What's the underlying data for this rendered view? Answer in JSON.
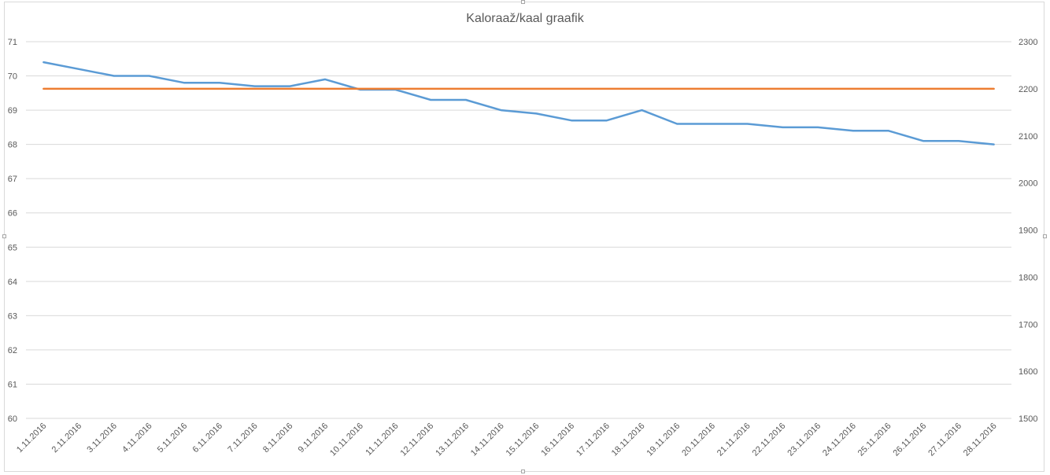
{
  "chart_data": {
    "type": "line",
    "title": "Kaloraaž/kaal graafik",
    "x": [
      "1.11.2016",
      "2.11.2016",
      "3.11.2016",
      "4.11.2016",
      "5.11.2016",
      "6.11.2016",
      "7.11.2016",
      "8.11.2016",
      "9.11.2016",
      "10.11.2016",
      "11.11.2016",
      "12.11.2016",
      "13.11.2016",
      "14.11.2016",
      "15.11.2016",
      "16.11.2016",
      "17.11.2016",
      "18.11.2016",
      "19.11.2016",
      "20.11.2016",
      "21.11.2016",
      "22.11.2016",
      "23.11.2016",
      "24.11.2016",
      "25.11.2016",
      "26.11.2016",
      "27.11.2016",
      "28.11.2016"
    ],
    "series": [
      {
        "axis": "left",
        "color": "#5b9bd5",
        "values": [
          70.4,
          70.2,
          70.0,
          70.0,
          69.8,
          69.8,
          69.7,
          69.7,
          69.9,
          69.6,
          69.6,
          69.3,
          69.3,
          69.0,
          68.9,
          68.7,
          68.7,
          69.0,
          68.6,
          68.6,
          68.6,
          68.5,
          68.5,
          68.4,
          68.4,
          68.1,
          68.1,
          68.0
        ]
      },
      {
        "axis": "right",
        "color": "#ed7d31",
        "values": [
          2200,
          2200,
          2200,
          2200,
          2200,
          2200,
          2200,
          2200,
          2200,
          2200,
          2200,
          2200,
          2200,
          2200,
          2200,
          2200,
          2200,
          2200,
          2200,
          2200,
          2200,
          2200,
          2200,
          2200,
          2200,
          2200,
          2200,
          2200
        ]
      }
    ],
    "y_left": {
      "min": 60,
      "max": 71,
      "ticks": [
        60,
        61,
        62,
        63,
        64,
        65,
        66,
        67,
        68,
        69,
        70,
        71
      ]
    },
    "y_right": {
      "min": 1500,
      "max": 2300,
      "ticks": [
        1500,
        1600,
        1700,
        1800,
        1900,
        2000,
        2100,
        2200,
        2300
      ]
    },
    "grid": true,
    "legend": "none"
  }
}
